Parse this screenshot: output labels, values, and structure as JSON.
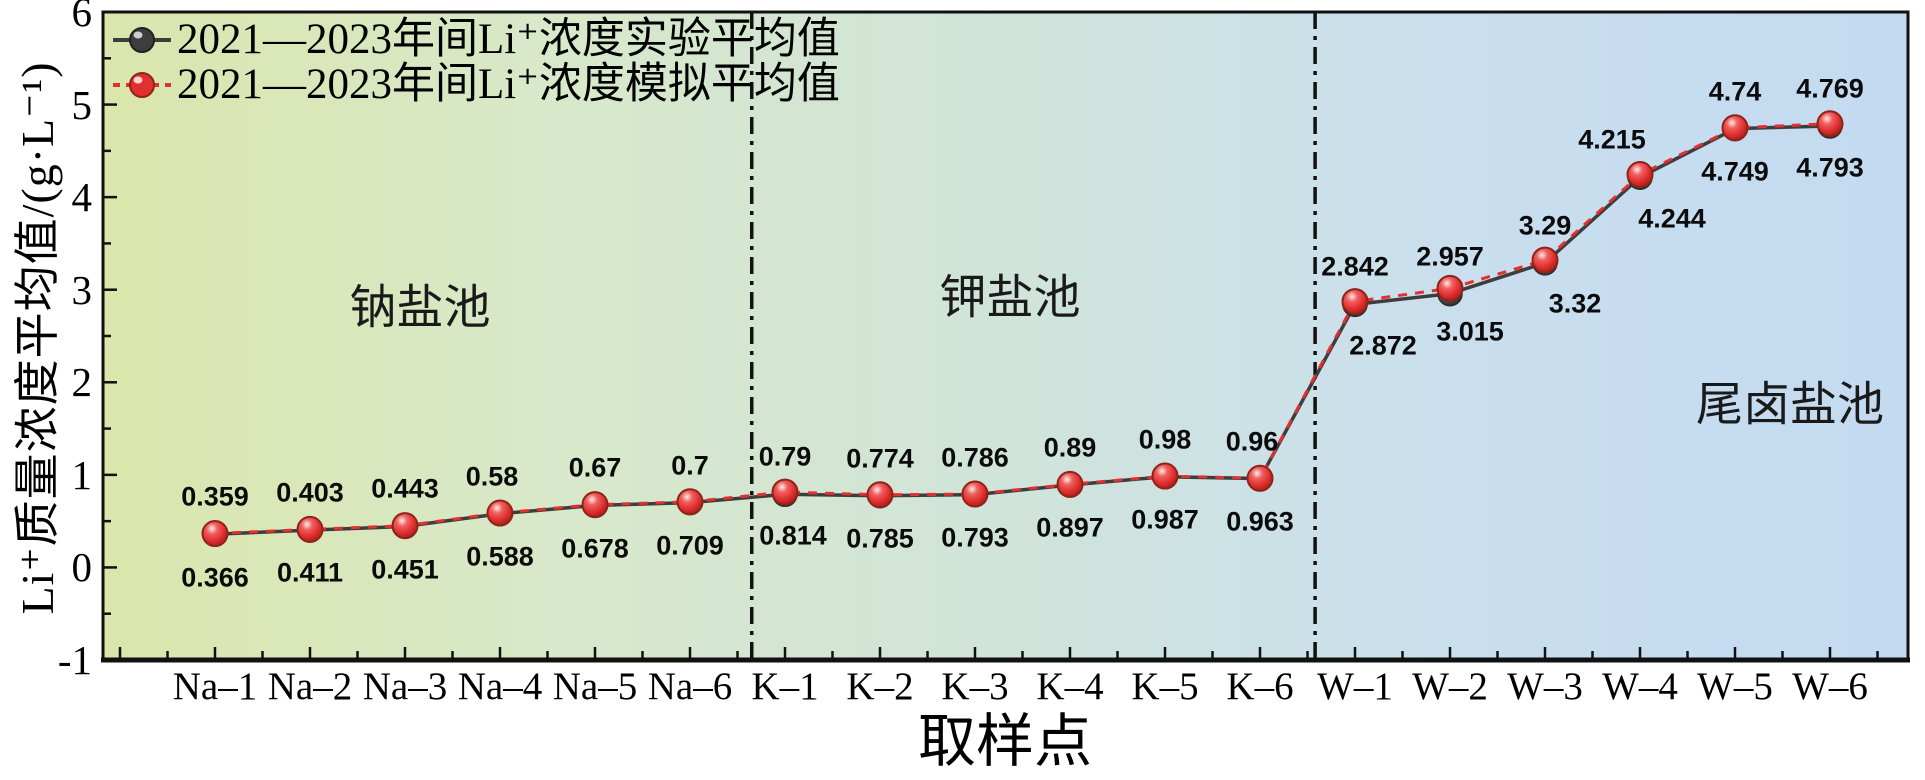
{
  "figure": {
    "y_axis_title": "Li⁺质量浓度平均值/(g·L⁻¹)",
    "x_axis_title": "取样点"
  },
  "chart_data": {
    "type": "line",
    "categories": [
      "Na–1",
      "Na–2",
      "Na–3",
      "Na–4",
      "Na–5",
      "Na–6",
      "K–1",
      "K–2",
      "K–3",
      "K–4",
      "K–5",
      "K–6",
      "W–1",
      "W–2",
      "W–3",
      "W–4",
      "W–5",
      "W–6"
    ],
    "series": [
      {
        "name": "2021—2023年间Li⁺浓度实验平均值",
        "style": "solid",
        "color": "#3d3d3d",
        "values": [
          0.359,
          0.403,
          0.443,
          0.58,
          0.67,
          0.7,
          0.79,
          0.774,
          0.786,
          0.89,
          0.98,
          0.96,
          2.842,
          2.957,
          3.29,
          4.215,
          4.74,
          4.769
        ]
      },
      {
        "name": "2021—2023年间Li⁺浓度模拟平均值",
        "style": "dashed",
        "color": "#e23030",
        "values": [
          0.366,
          0.411,
          0.451,
          0.588,
          0.678,
          0.709,
          0.814,
          0.785,
          0.793,
          0.897,
          0.987,
          0.963,
          2.872,
          3.015,
          3.32,
          4.244,
          4.749,
          4.793
        ]
      }
    ],
    "ylim": [
      -1,
      6
    ],
    "yticks": [
      6,
      5,
      4,
      3,
      2,
      1,
      0,
      -1
    ],
    "grid": false,
    "legend_position": "top-left",
    "regions": [
      {
        "label": "钠盐池"
      },
      {
        "label": "钾盐池"
      },
      {
        "label": "尾卤盐池"
      }
    ],
    "divider_positions": [
      5.65,
      11.58
    ],
    "background_gradient": [
      "#dbe6ac",
      "#d8e8ca",
      "#d0e4da",
      "#c9dfee",
      "#c3daf1"
    ],
    "marker_gradient_red": [
      "#ffeaea",
      "#ee6060",
      "#e22f2f",
      "#9c1a1a"
    ],
    "marker_gradient_gray": [
      "#f2f2f2",
      "#8d8d8d",
      "#4d4d4d",
      "#262626"
    ]
  }
}
